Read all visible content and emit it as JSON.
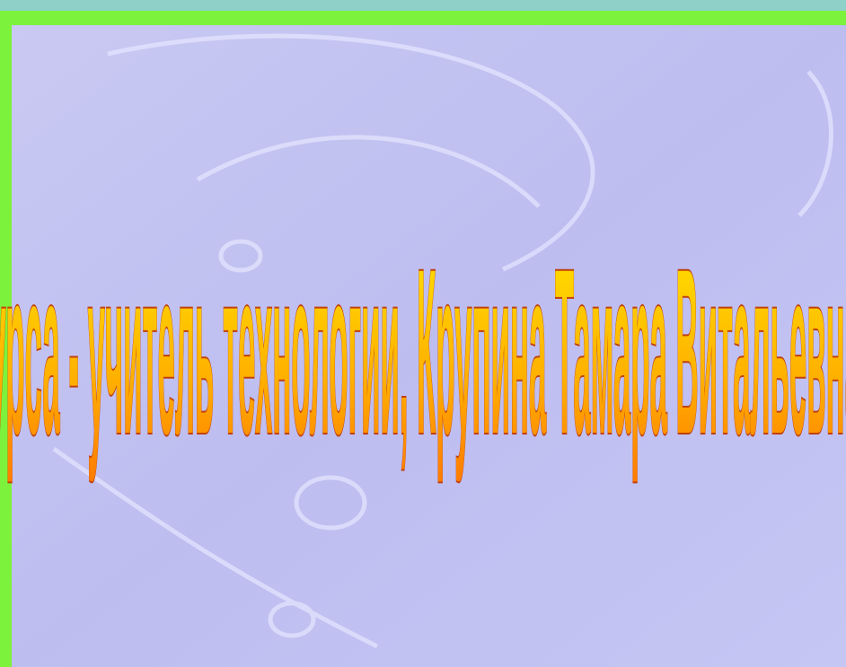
{
  "slide": {
    "caption": "курса - учитель технологии, Крупина Тамара Витальевна"
  }
}
